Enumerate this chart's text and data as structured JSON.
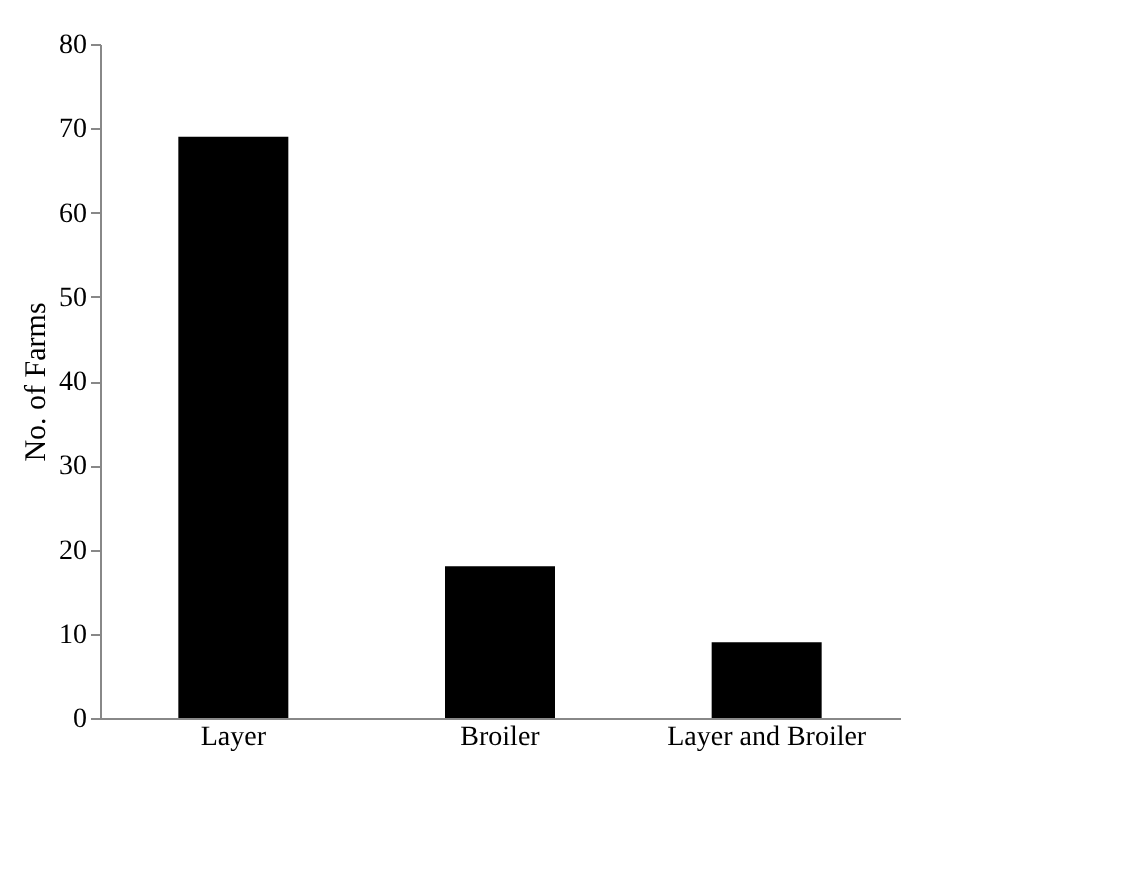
{
  "chart_data": {
    "type": "bar",
    "ylabel": "No. of Farms",
    "categories": [
      "Layer",
      "Broiler",
      "Layer and Broiler"
    ],
    "values": [
      69,
      18,
      9
    ],
    "colors": [
      "#000000",
      "#000000",
      "#000000"
    ],
    "ylim": [
      0,
      80
    ],
    "yticks": [
      0,
      10,
      20,
      30,
      40,
      50,
      60,
      70,
      80
    ],
    "grid": false
  }
}
